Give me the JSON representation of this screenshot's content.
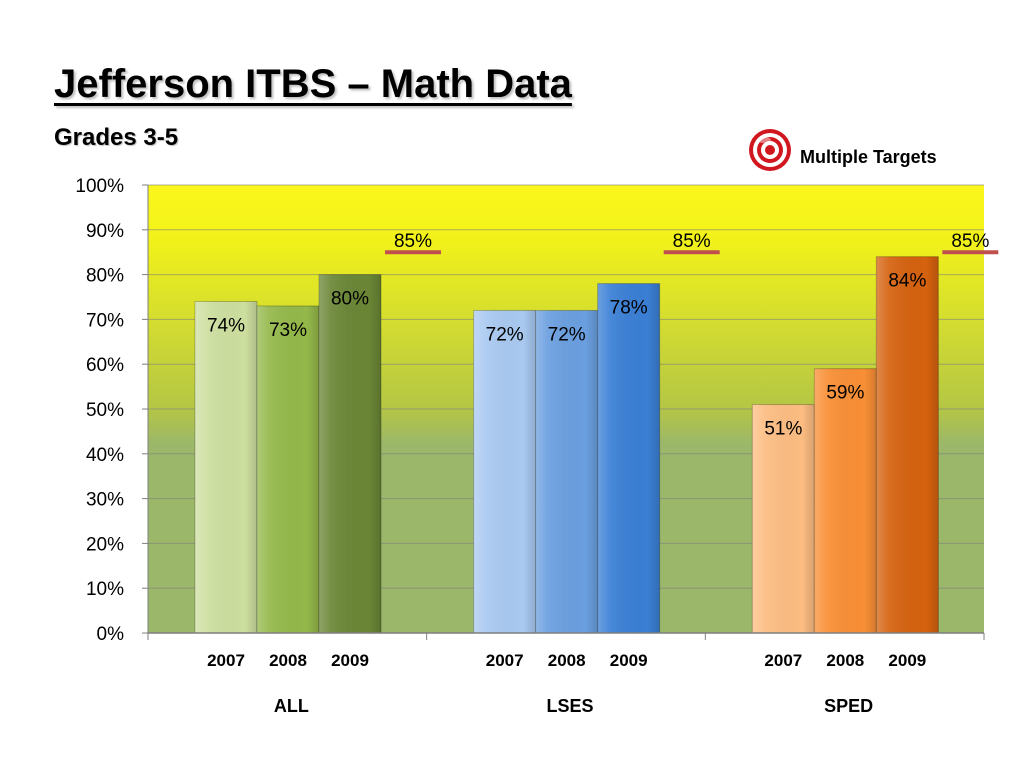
{
  "slide": {
    "title": "Jefferson ITBS – Math Data",
    "subtitle": "Grades 3-5"
  },
  "legend": {
    "label": "Multiple Targets",
    "icon": "target-icon",
    "icon_color": "#d0161e"
  },
  "chart_data": {
    "type": "bar",
    "title": "Jefferson ITBS – Math Data",
    "subtitle": "Grades 3-5",
    "ylim": [
      0,
      100
    ],
    "ytick_labels": [
      "0%",
      "10%",
      "20%",
      "30%",
      "40%",
      "50%",
      "60%",
      "70%",
      "80%",
      "90%",
      "100%"
    ],
    "grid": true,
    "groups": [
      {
        "name": "ALL",
        "target_label": "85%",
        "target": 85,
        "bars": [
          {
            "year": "2007",
            "value": 74,
            "label": "74%",
            "color": "#cddf9f"
          },
          {
            "year": "2008",
            "value": 73,
            "label": "73%",
            "color": "#94b84a"
          },
          {
            "year": "2009",
            "value": 80,
            "label": "80%",
            "color": "#6a8635"
          }
        ]
      },
      {
        "name": "LSES",
        "target_label": "85%",
        "target": 85,
        "bars": [
          {
            "year": "2007",
            "value": 72,
            "label": "72%",
            "color": "#a9c9f1"
          },
          {
            "year": "2008",
            "value": 72,
            "label": "72%",
            "color": "#6a9fe0"
          },
          {
            "year": "2009",
            "value": 78,
            "label": "78%",
            "color": "#3a7fd5"
          }
        ]
      },
      {
        "name": "SPED",
        "target_label": "85%",
        "target": 85,
        "bars": [
          {
            "year": "2007",
            "value": 51,
            "label": "51%",
            "color": "#fdbd82"
          },
          {
            "year": "2008",
            "value": 59,
            "label": "59%",
            "color": "#f98f35"
          },
          {
            "year": "2009",
            "value": 84,
            "label": "84%",
            "color": "#d5620f"
          }
        ]
      }
    ],
    "colors": {
      "background_top": "#fbf71c",
      "background_bottom": "#9bb76a",
      "target_line": "#c0504d",
      "gridline": "#7f7f7f"
    }
  }
}
